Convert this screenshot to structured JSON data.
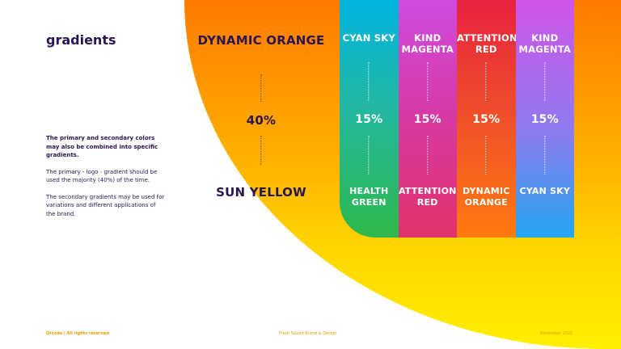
{
  "page": {
    "number": "12"
  },
  "heading": "gradients",
  "body": {
    "paragraphs": [
      "The primary and secondary colors may also be combined into specific gradients.",
      "The primary - logo - gradient should be used the majority (40%) of the time.",
      "The secondary gradients may be used for variations and different applications of the brand."
    ]
  },
  "primary_gradient": {
    "top": "DYNAMIC ORANGE",
    "percent": "40%",
    "bottom": "SUN YELLOW"
  },
  "secondary_gradients": [
    {
      "top": "CYAN SKY",
      "percent": "15%",
      "bottom": "HEALTH GREEN"
    },
    {
      "top": "KIND MAGENTA",
      "percent": "15%",
      "bottom": "ATTENTION RED"
    },
    {
      "top": "ATTENTION RED",
      "percent": "15%",
      "bottom": "DYNAMIC ORANGE"
    },
    {
      "top": "KIND MAGENTA",
      "percent": "15%",
      "bottom": "CYAN SKY"
    }
  ],
  "footer": {
    "left": "Qrcode | All rights reserved",
    "middle": "Fresh Squad Brand & Design",
    "right": "November 2021"
  },
  "colors": {
    "navy": "#2a1550",
    "dynamic_orange": "#ff7a00",
    "sun_yellow": "#fff000",
    "cyan_sky": "#00b4e0",
    "health_green": "#2fb84a",
    "kind_magenta": "#cf4be0",
    "attention_red": "#e8223f"
  }
}
